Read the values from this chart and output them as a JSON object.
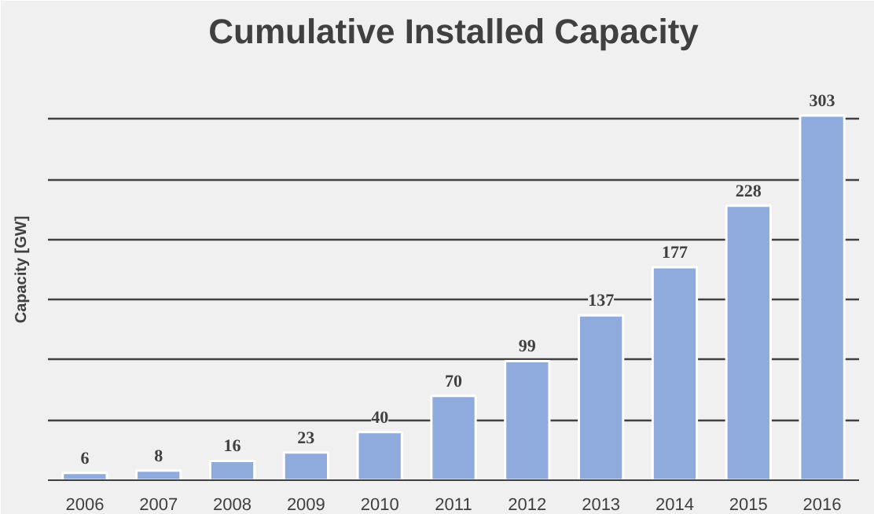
{
  "chart_data": {
    "type": "bar",
    "title": "Cumulative Installed Capacity",
    "ylabel": "Capacity [GW]",
    "categories": [
      "2006",
      "2007",
      "2008",
      "2009",
      "2010",
      "2011",
      "2012",
      "2013",
      "2014",
      "2015",
      "2016"
    ],
    "values": [
      6,
      8,
      16,
      23,
      40,
      70,
      99,
      137,
      177,
      228,
      303
    ],
    "color": "#8faadc",
    "data_labels": true,
    "grid": "y",
    "tick_labels": "x",
    "ylim": [
      0,
      350
    ],
    "yticks": [
      {
        "value": 0,
        "label": null
      },
      {
        "value": 50,
        "label": null
      },
      {
        "value": 100,
        "label": null
      },
      {
        "value": 150,
        "label": null
      },
      {
        "value": 200,
        "label": null
      },
      {
        "value": 250,
        "label": null
      },
      {
        "value": 300,
        "label": null
      }
    ]
  }
}
